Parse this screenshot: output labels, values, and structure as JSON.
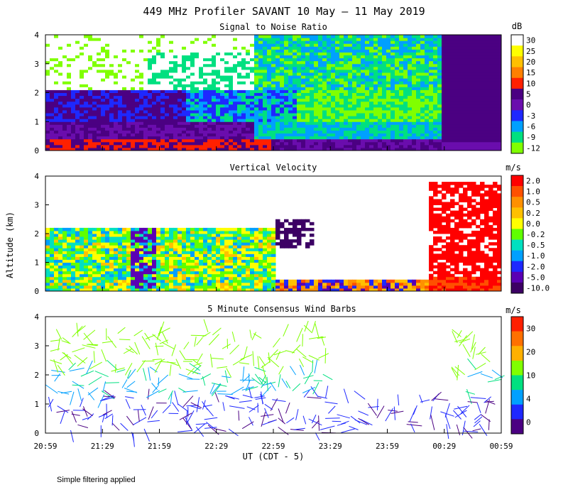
{
  "figure": {
    "title": "449 MHz Profiler SAVANT 10 May — 11 May 2019",
    "xlabel": "UT (CDT - 5)",
    "ylabel": "Altitude (km)",
    "footnote": "Simple filtering applied",
    "x_ticks": [
      "20:59",
      "21:29",
      "21:59",
      "22:29",
      "22:59",
      "23:29",
      "23:59",
      "00:29",
      "00:59"
    ]
  },
  "chart_data": [
    {
      "type": "heatmap",
      "title": "Signal to Noise Ratio",
      "ylabel": "Altitude (km)",
      "ylim": [
        0,
        4
      ],
      "y_ticks": [
        "0",
        "1",
        "2",
        "3",
        "4"
      ],
      "colorbar": {
        "unit": "dB",
        "labels": [
          "30",
          "25",
          "20",
          "15",
          "10",
          "5",
          "0",
          "-3",
          "-6",
          "-9",
          "-12"
        ],
        "colors": [
          "#ffffff",
          "#ffff00",
          "#ffc000",
          "#ff8000",
          "#ff2000",
          "#4b0082",
          "#6a0dad",
          "#1e28ff",
          "#00a0ff",
          "#00e080",
          "#80ff00"
        ]
      }
    },
    {
      "type": "heatmap",
      "title": "Vertical Velocity",
      "ylabel": "Altitude (km)",
      "ylim": [
        0,
        4
      ],
      "y_ticks": [
        "0",
        "1",
        "2",
        "3",
        "4"
      ],
      "colorbar": {
        "unit": "m/s",
        "labels": [
          "2.0",
          "1.0",
          "0.5",
          "0.2",
          "0.0",
          "-0.2",
          "-0.5",
          "-1.0",
          "-2.0",
          "-5.0",
          "-10.0"
        ],
        "colors": [
          "#ff0000",
          "#ff5000",
          "#ff9000",
          "#ffc000",
          "#ffff00",
          "#60ff00",
          "#00e0c0",
          "#00a0ff",
          "#1e28ff",
          "#5a00b4",
          "#3c0064"
        ]
      }
    },
    {
      "type": "scatter",
      "title": "5 Minute Consensus Wind Barbs",
      "ylabel": "Altitude (km)",
      "ylim": [
        0,
        4
      ],
      "y_ticks": [
        "0",
        "1",
        "2",
        "3",
        "4"
      ],
      "colorbar": {
        "unit": "m/s",
        "labels": [
          "30",
          "20",
          "10",
          "4",
          "0"
        ],
        "colors": [
          "#ff2000",
          "#ff7000",
          "#ffb000",
          "#80ff00",
          "#00e080",
          "#00a0ff",
          "#1e28ff",
          "#4b0082"
        ]
      }
    }
  ]
}
